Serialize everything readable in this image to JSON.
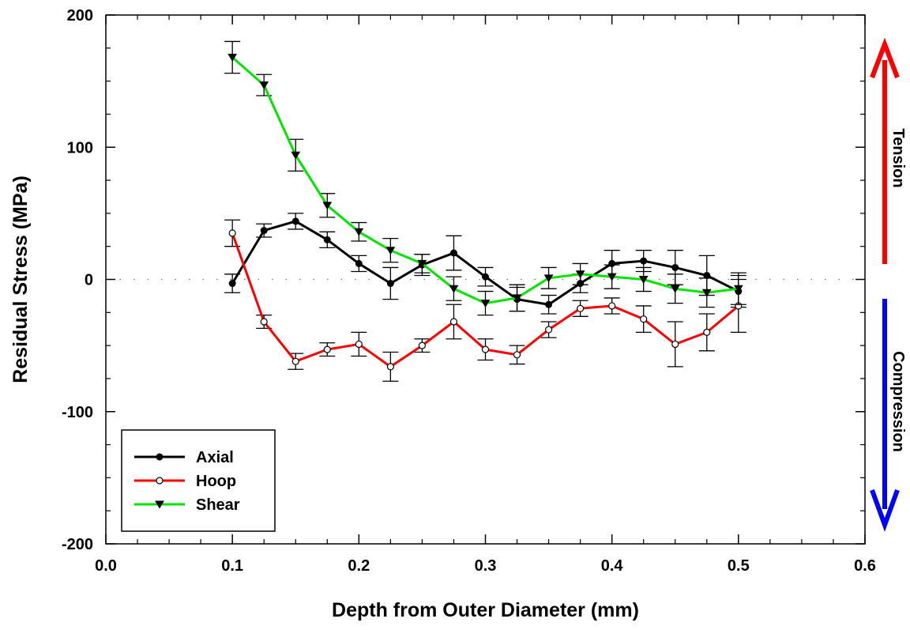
{
  "chart_data": {
    "type": "line",
    "xlabel": "Depth from Outer Diameter (mm)",
    "ylabel": "Residual Stress (MPa)",
    "xlim": [
      0.0,
      0.6
    ],
    "ylim": [
      -200,
      200
    ],
    "x_ticks": [
      "0.0",
      "0.1",
      "0.2",
      "0.3",
      "0.4",
      "0.5",
      "0.6"
    ],
    "y_ticks": [
      "-200",
      "-100",
      "0",
      "100",
      "200"
    ],
    "zero_reference_line": true,
    "legend_position": "bottom-left",
    "x": [
      0.1,
      0.125,
      0.15,
      0.175,
      0.2,
      0.225,
      0.25,
      0.275,
      0.3,
      0.325,
      0.35,
      0.375,
      0.4,
      0.425,
      0.45,
      0.475,
      0.5
    ],
    "series": [
      {
        "name": "Axial",
        "color": "#000000",
        "marker": "filled-circle",
        "values": [
          -3,
          37,
          44,
          30,
          12,
          -3,
          11,
          20,
          2,
          -15,
          -19,
          -3,
          12,
          14,
          9,
          3,
          -9
        ],
        "errors": [
          7,
          5,
          6,
          6,
          6,
          12,
          8,
          13,
          7,
          9,
          7,
          7,
          10,
          8,
          13,
          15,
          12
        ]
      },
      {
        "name": "Hoop",
        "color": "#ff0000",
        "marker": "open-circle",
        "values": [
          35,
          -32,
          -62,
          -53,
          -49,
          -66,
          -50,
          -32,
          -53,
          -57,
          -38,
          -22,
          -20,
          -30,
          -49,
          -40,
          -20
        ],
        "errors": [
          10,
          5,
          6,
          5,
          9,
          11,
          5,
          13,
          8,
          7,
          6,
          6,
          6,
          10,
          17,
          14,
          20
        ]
      },
      {
        "name": "Shear",
        "color": "#00e600",
        "marker": "filled-triangle-down",
        "values": [
          168,
          147,
          94,
          56,
          36,
          22,
          12,
          -7,
          -18,
          -14,
          1,
          4,
          2,
          0,
          -7,
          -10,
          -7
        ],
        "errors": [
          12,
          8,
          12,
          9,
          7,
          9,
          7,
          9,
          9,
          10,
          8,
          8,
          9,
          9,
          11,
          11,
          12
        ]
      }
    ],
    "annotations": {
      "tension": {
        "label": "Tension",
        "color": "#ff0000",
        "direction": "up"
      },
      "compression": {
        "label": "Compression",
        "color": "#0000ff",
        "direction": "down"
      }
    }
  }
}
